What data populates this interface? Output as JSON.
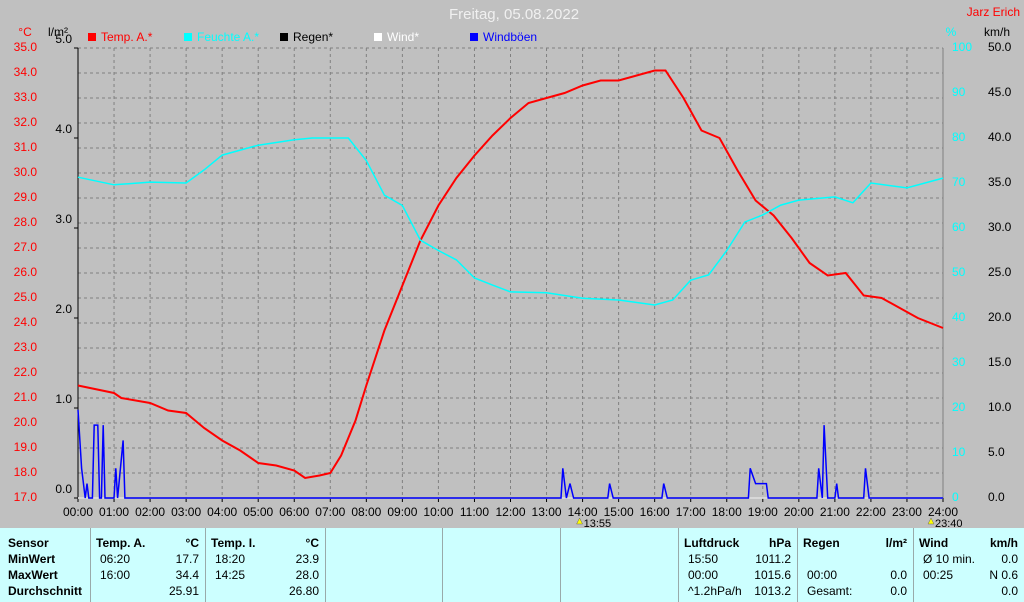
{
  "chart_data": {
    "type": "line",
    "title": "Freitag, 05.08.2022",
    "author": "Jarz Erich",
    "units": {
      "temp": "°C",
      "rain": "l/m²",
      "hum": "%",
      "wind": "km/h"
    },
    "xlim": [
      0,
      24
    ],
    "xticks": [
      {
        "value": 0,
        "label": "00:00"
      },
      {
        "value": 1,
        "label": "01:00"
      },
      {
        "value": 2,
        "label": "02:00"
      },
      {
        "value": 3,
        "label": "03:00"
      },
      {
        "value": 4,
        "label": "04:00"
      },
      {
        "value": 5,
        "label": "05:00"
      },
      {
        "value": 6,
        "label": "06:00"
      },
      {
        "value": 7,
        "label": "07:00"
      },
      {
        "value": 8,
        "label": "08:00"
      },
      {
        "value": 9,
        "label": "09:00"
      },
      {
        "value": 10,
        "label": "10:00"
      },
      {
        "value": 11,
        "label": "11:00"
      },
      {
        "value": 12,
        "label": "12:00"
      },
      {
        "value": 13,
        "label": "13:00"
      },
      {
        "value": 14,
        "label": "14:00"
      },
      {
        "value": 15,
        "label": "15:00"
      },
      {
        "value": 16,
        "label": "16:00"
      },
      {
        "value": 17,
        "label": "17:00"
      },
      {
        "value": 18,
        "label": "18:00"
      },
      {
        "value": 19,
        "label": "19:00"
      },
      {
        "value": 20,
        "label": "20:00"
      },
      {
        "value": 21,
        "label": "21:00"
      },
      {
        "value": 22,
        "label": "22:00"
      },
      {
        "value": 23,
        "label": "23:00"
      },
      {
        "value": 24,
        "label": "24:00"
      }
    ],
    "ylim": [
      17,
      35
    ],
    "yticks": [
      {
        "value": 17,
        "label": "17.0"
      },
      {
        "value": 18,
        "label": "18.0"
      },
      {
        "value": 19,
        "label": "19.0"
      },
      {
        "value": 20,
        "label": "20.0"
      },
      {
        "value": 21,
        "label": "21.0"
      },
      {
        "value": 22,
        "label": "22.0"
      },
      {
        "value": 23,
        "label": "23.0"
      },
      {
        "value": 24,
        "label": "24.0"
      },
      {
        "value": 25,
        "label": "25.0"
      },
      {
        "value": 26,
        "label": "26.0"
      },
      {
        "value": 27,
        "label": "27.0"
      },
      {
        "value": 28,
        "label": "28.0"
      },
      {
        "value": 29,
        "label": "29.0"
      },
      {
        "value": 30,
        "label": "30.0"
      },
      {
        "value": 31,
        "label": "31.0"
      },
      {
        "value": 32,
        "label": "32.0"
      },
      {
        "value": 33,
        "label": "33.0"
      },
      {
        "value": 34,
        "label": "34.0"
      },
      {
        "value": 35,
        "label": "35.0"
      }
    ],
    "rain_lim": [
      0,
      5
    ],
    "rain_ticks": [
      {
        "value": 0,
        "label": "0.0"
      },
      {
        "value": 1,
        "label": "1.0"
      },
      {
        "value": 2,
        "label": "2.0"
      },
      {
        "value": 3,
        "label": "3.0"
      },
      {
        "value": 4,
        "label": "4.0"
      },
      {
        "value": 5,
        "label": "5.0"
      }
    ],
    "y2lim": [
      0,
      100
    ],
    "y2ticks": [
      0,
      10,
      20,
      30,
      40,
      50,
      60,
      70,
      80,
      90,
      100
    ],
    "y3lim": [
      0,
      50
    ],
    "y3ticks": [
      {
        "value": 0,
        "label": "0.0"
      },
      {
        "value": 5,
        "label": "5.0"
      },
      {
        "value": 10,
        "label": "10.0"
      },
      {
        "value": 15,
        "label": "15.0"
      },
      {
        "value": 20,
        "label": "20.0"
      },
      {
        "value": 25,
        "label": "25.0"
      },
      {
        "value": 30,
        "label": "30.0"
      },
      {
        "value": 35,
        "label": "35.0"
      },
      {
        "value": 40,
        "label": "40.0"
      },
      {
        "value": 45,
        "label": "45.0"
      },
      {
        "value": 50,
        "label": "50.0"
      }
    ],
    "grid": true,
    "series": [
      {
        "name": "Temp. A.*",
        "color": "#ff0000",
        "axis": "y",
        "x": [
          0,
          1,
          1.2,
          2,
          2.5,
          3,
          3.5,
          4,
          4.5,
          5,
          5.5,
          6,
          6.3,
          6.7,
          7,
          7.3,
          7.7,
          8,
          8.5,
          9,
          9.5,
          10,
          10.5,
          11,
          11.5,
          12,
          12.5,
          13,
          13.5,
          14,
          14.5,
          15,
          15.5,
          16,
          16.3,
          16.8,
          17.3,
          17.8,
          18.3,
          18.8,
          19.3,
          19.8,
          20.3,
          20.8,
          21.3,
          21.8,
          22.3,
          22.8,
          23.3,
          24
        ],
        "values": [
          21.5,
          21.2,
          21.0,
          20.8,
          20.5,
          20.4,
          19.8,
          19.3,
          18.9,
          18.4,
          18.3,
          18.1,
          17.8,
          17.9,
          18.0,
          18.7,
          20.1,
          21.5,
          23.7,
          25.5,
          27.3,
          28.7,
          29.8,
          30.7,
          31.5,
          32.2,
          32.8,
          33.0,
          33.2,
          33.5,
          33.7,
          33.7,
          33.9,
          34.1,
          34.1,
          33.0,
          31.7,
          31.4,
          30.1,
          28.9,
          28.3,
          27.4,
          26.4,
          25.9,
          26.0,
          25.1,
          25.0,
          24.6,
          24.2,
          23.8
        ]
      },
      {
        "name": "Feuchte A.*",
        "color": "#00ffff",
        "axis": "y2",
        "x": [
          0,
          1,
          2,
          3,
          3.5,
          4,
          5,
          6,
          6.5,
          7.5,
          8,
          8.5,
          9,
          9.5,
          10,
          10.5,
          11,
          11.5,
          12,
          13,
          14,
          15,
          16,
          16.5,
          17,
          17.5,
          18,
          18.5,
          19,
          19.5,
          20,
          21,
          21.5,
          22,
          23,
          24
        ],
        "values": [
          71.3,
          69.6,
          70.2,
          70,
          72.9,
          76.2,
          78.4,
          79.6,
          80,
          80,
          75,
          67.3,
          65,
          57.3,
          55,
          52.9,
          48.9,
          47.3,
          45.8,
          45.6,
          44.4,
          44,
          42.9,
          44,
          48.4,
          49.6,
          55,
          61.3,
          62.9,
          65.1,
          66.2,
          66.9,
          65.6,
          70,
          68.9,
          71.1
        ]
      },
      {
        "name": "Regen*",
        "color": "#000000",
        "axis": "rain",
        "x": [
          0,
          24
        ],
        "values": [
          0,
          0
        ]
      },
      {
        "name": "Wind*",
        "color": "#ffffff",
        "axis": "y3",
        "x": [
          0,
          24
        ],
        "values": [
          0,
          0
        ]
      },
      {
        "name": "Windböen",
        "color": "#0000ff",
        "axis": "y3",
        "x": [
          0,
          0.1,
          0.2,
          0.25,
          0.3,
          0.4,
          0.45,
          0.55,
          0.6,
          0.65,
          0.7,
          0.75,
          1.0,
          1.05,
          1.1,
          1.25,
          1.3,
          13.4,
          13.45,
          13.55,
          13.65,
          13.75,
          14.7,
          14.75,
          14.85,
          16.2,
          16.25,
          16.35,
          18.6,
          18.65,
          18.8,
          19.1,
          19.15,
          20.5,
          20.55,
          20.65,
          20.7,
          20.8,
          21.0,
          21.05,
          21.1,
          21.8,
          21.85,
          21.95,
          24
        ],
        "values": [
          9.8,
          3.3,
          0,
          1.6,
          0,
          0,
          8.1,
          8.1,
          0,
          0,
          8.1,
          0,
          0,
          3.3,
          0,
          6.4,
          0,
          0,
          3.3,
          0,
          1.6,
          0,
          0,
          1.6,
          0,
          0,
          1.6,
          0,
          0,
          3.3,
          1.6,
          1.6,
          0,
          0,
          3.3,
          0,
          8.1,
          0,
          0,
          1.6,
          0,
          0,
          3.3,
          0,
          0
        ]
      }
    ],
    "annotations": [
      {
        "x": 13.9167,
        "label": "13:55"
      },
      {
        "x": 23.6667,
        "label": "23:40"
      }
    ]
  },
  "table": {
    "sensor": "Sensor",
    "columns": [
      {
        "title": "Temp. A.",
        "unit": "°C"
      },
      {
        "title": "Temp. I.",
        "unit": "°C"
      },
      {
        "title": "Luftdruck",
        "unit": "hPa"
      },
      {
        "title": "Regen",
        "unit": "l/m²"
      },
      {
        "title": "Wind",
        "unit": "km/h"
      }
    ],
    "rows": [
      {
        "label": "MinWert",
        "cells": [
          [
            "06:20",
            "17.7"
          ],
          [
            "18:20",
            "23.9"
          ],
          [
            "15:50",
            "1011.2"
          ],
          [
            null,
            null
          ],
          [
            "Ø 10 min.",
            "0.0"
          ]
        ]
      },
      {
        "label": "MaxWert",
        "cells": [
          [
            "16:00",
            "34.4"
          ],
          [
            "14:25",
            "28.0"
          ],
          [
            "00:00",
            "1015.6"
          ],
          [
            "00:00",
            "0.0"
          ],
          [
            "00:25",
            "N 0.6"
          ]
        ]
      },
      {
        "label": "Durchschnitt",
        "cells": [
          [
            null,
            "25.91"
          ],
          [
            null,
            "26.80"
          ],
          [
            "^1.2hPa/h",
            "1013.2"
          ],
          [
            "Gesamt:",
            "0.0"
          ],
          [
            null,
            "0.0"
          ]
        ]
      }
    ]
  }
}
